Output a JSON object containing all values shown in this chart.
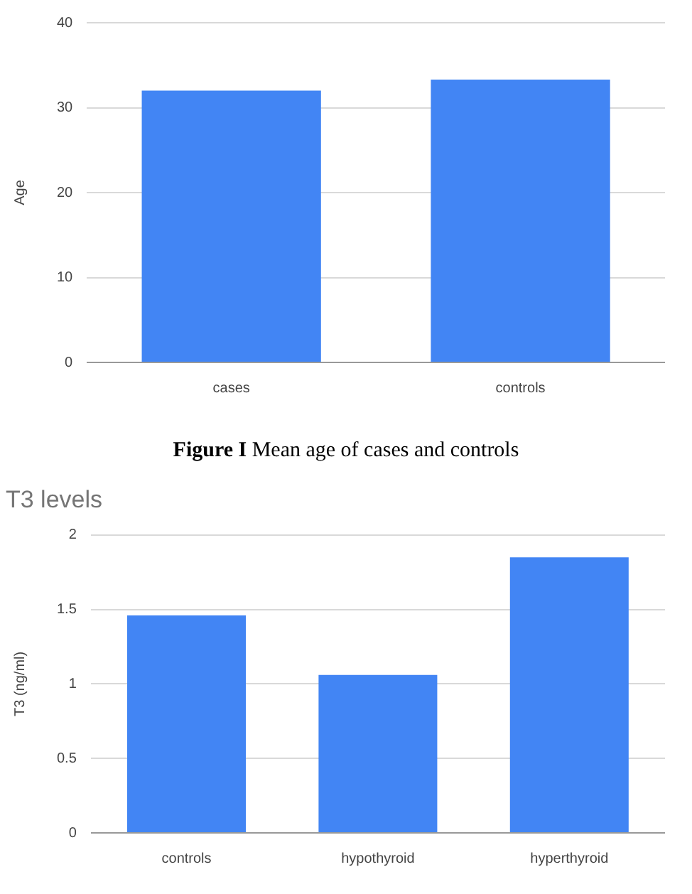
{
  "chart_data": [
    {
      "type": "bar",
      "categories": [
        "cases",
        "controls"
      ],
      "values": [
        32.0,
        33.3
      ],
      "color": "#4285f4",
      "ylabel": "Age",
      "ylim": [
        0,
        40
      ],
      "yticks": [
        0,
        10,
        20,
        30,
        40
      ],
      "grid": "y",
      "annotations": [
        "Figure I Mean age of cases and controls"
      ]
    },
    {
      "type": "bar",
      "title": "T3 levels",
      "categories": [
        "controls",
        "hypothyroid",
        "hyperthyroid"
      ],
      "values": [
        1.46,
        1.06,
        1.85
      ],
      "color": "#4285f4",
      "ylabel": "T3 (ng/ml)",
      "ylim": [
        0,
        2
      ],
      "yticks": [
        0,
        0.5,
        1,
        1.5,
        2
      ],
      "grid": "y"
    }
  ]
}
